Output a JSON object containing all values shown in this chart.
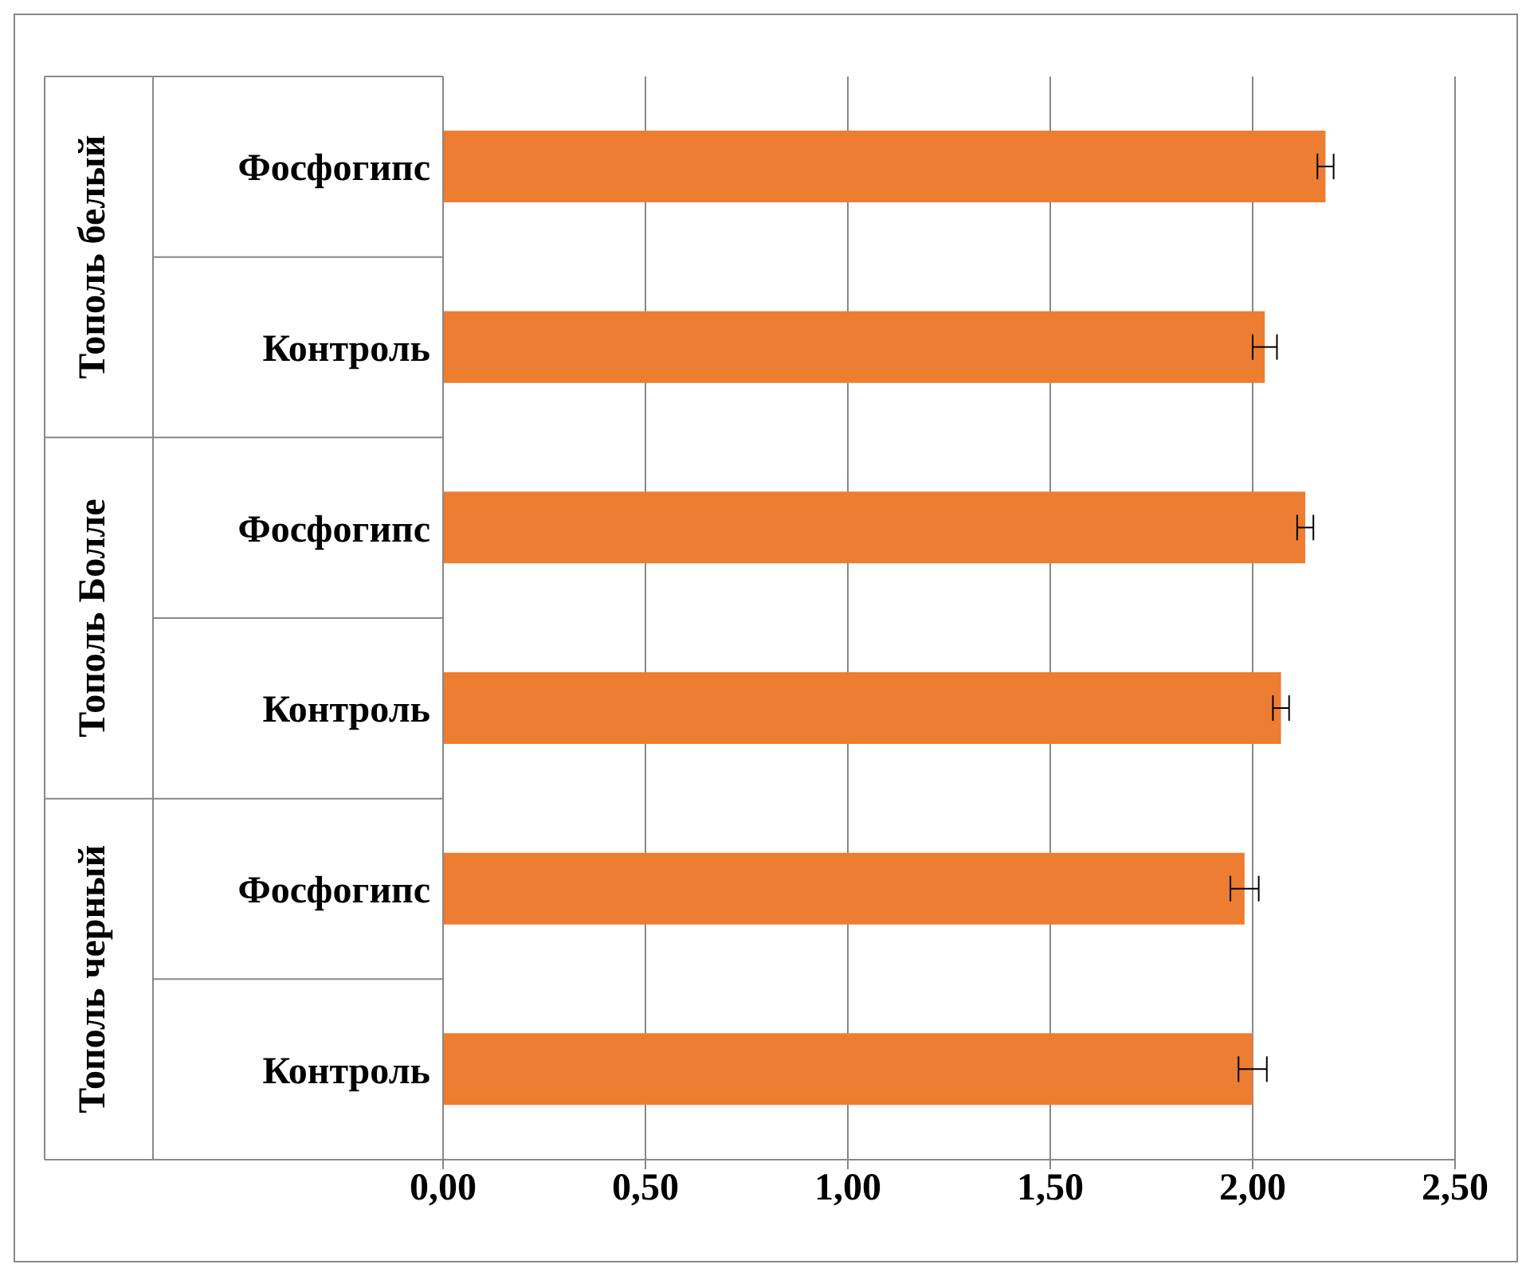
{
  "chart_data": {
    "type": "bar",
    "orientation": "horizontal",
    "categories": [
      "Фосфогипс",
      "Контроль",
      "Фосфогипс",
      "Контроль",
      "Фосфогипс",
      "Контроль"
    ],
    "values": [
      2.18,
      2.03,
      2.13,
      2.07,
      1.98,
      2.0
    ],
    "errors": [
      0.02,
      0.03,
      0.02,
      0.02,
      0.035,
      0.035
    ],
    "color": "#ed7d31",
    "xlim": [
      0,
      2.5
    ],
    "xticks": [
      {
        "value": 0,
        "label": "0,00"
      },
      {
        "value": 0.5,
        "label": "0,50"
      },
      {
        "value": 1,
        "label": "1,00"
      },
      {
        "value": 1.5,
        "label": "1,50"
      },
      {
        "value": 2,
        "label": "2,00"
      },
      {
        "value": 2.5,
        "label": "2,50"
      }
    ],
    "grid": "x",
    "annotations": [
      "Тополь белый",
      "Тополь Болле",
      "Тополь черный"
    ]
  }
}
